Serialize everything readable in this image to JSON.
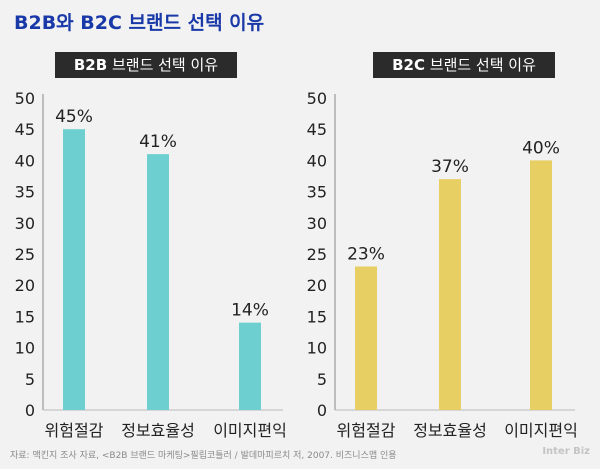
{
  "title": "B2B와 B2C 브랜드 선택 이유",
  "source": "자료: 맥킨지 조사 자료, <B2B 브랜드 마케팅>필립코틀러 / 발데마피르치 저, 2007. 비즈니스맵 인용",
  "logo": "Inter Biz",
  "colors": {
    "b2b": "#6dcfcf",
    "b2c": "#e8cf63",
    "title": "#1a39a8",
    "panel_title_bg": "#2b2b2b"
  },
  "chart_data": [
    {
      "type": "bar",
      "title": "B2B 브랜드 선택 이유",
      "title_bold": "B2B",
      "title_rest": "브랜드 선택 이유",
      "categories": [
        "위험절감",
        "정보효율성",
        "이미지편익"
      ],
      "values": [
        45,
        41,
        14
      ],
      "data_labels": [
        "45%",
        "41%",
        "14%"
      ],
      "ylim": [
        0,
        50
      ],
      "yticks": [
        "0",
        "5",
        "10",
        "15",
        "20",
        "25",
        "30",
        "35",
        "40",
        "45",
        "50"
      ],
      "color": "#6dcfcf",
      "grid": false
    },
    {
      "type": "bar",
      "title": "B2C 브랜드 선택 이유",
      "title_bold": "B2C",
      "title_rest": "브랜드 선택 이유",
      "categories": [
        "위험절감",
        "정보효율성",
        "이미지편익"
      ],
      "values": [
        23,
        37,
        40
      ],
      "data_labels": [
        "23%",
        "37%",
        "40%"
      ],
      "ylim": [
        0,
        50
      ],
      "yticks": [
        "0",
        "5",
        "10",
        "15",
        "20",
        "25",
        "30",
        "35",
        "40",
        "45",
        "50"
      ],
      "color": "#e8cf63",
      "grid": false
    }
  ]
}
